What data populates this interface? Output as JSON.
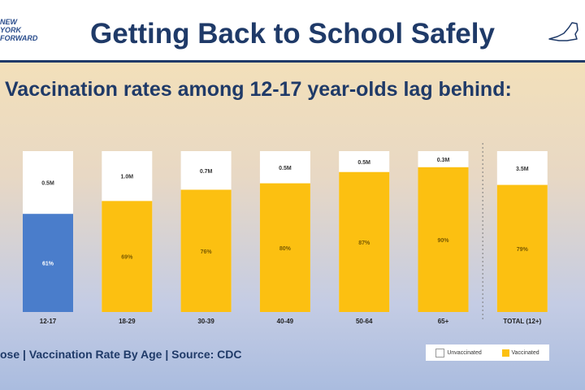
{
  "header": {
    "title": "Getting Back to School Safely",
    "logo_lines": [
      "NEW",
      "YORK",
      "FORWARD"
    ]
  },
  "subtitle": "Vaccination rates among 12-17 year-olds lag behind:",
  "footer": {
    "source_text": "ose | Vaccination Rate By Age | Source: CDC"
  },
  "legend": {
    "unvaccinated": "Unvaccinated",
    "vaccinated": "Vaccinated"
  },
  "colors": {
    "vaccinated": "#fcc011",
    "highlight": "#4a7dcb",
    "unvaccinated": "#ffffff",
    "divider": "#7a7a7a"
  },
  "chart_data": {
    "type": "bar",
    "stacked": true,
    "orientation": "vertical",
    "categories": [
      "12-17",
      "18-29",
      "30-39",
      "40-49",
      "50-64",
      "65+",
      "TOTAL (12+)"
    ],
    "series": [
      {
        "name": "Vaccinated",
        "values": [
          61,
          69,
          76,
          80,
          87,
          90,
          79
        ],
        "labels": [
          "61%",
          "69%",
          "76%",
          "80%",
          "87%",
          "90%",
          "79%"
        ]
      },
      {
        "name": "Unvaccinated",
        "labels": [
          "0.5M",
          "1.0M",
          "0.7M",
          "0.5M",
          "0.5M",
          "0.3M",
          "3.5M"
        ]
      }
    ],
    "highlight_category": "12-17",
    "ylim": [
      0,
      100
    ],
    "title": "Vaccination rates among 12-17 year-olds lag behind:"
  }
}
